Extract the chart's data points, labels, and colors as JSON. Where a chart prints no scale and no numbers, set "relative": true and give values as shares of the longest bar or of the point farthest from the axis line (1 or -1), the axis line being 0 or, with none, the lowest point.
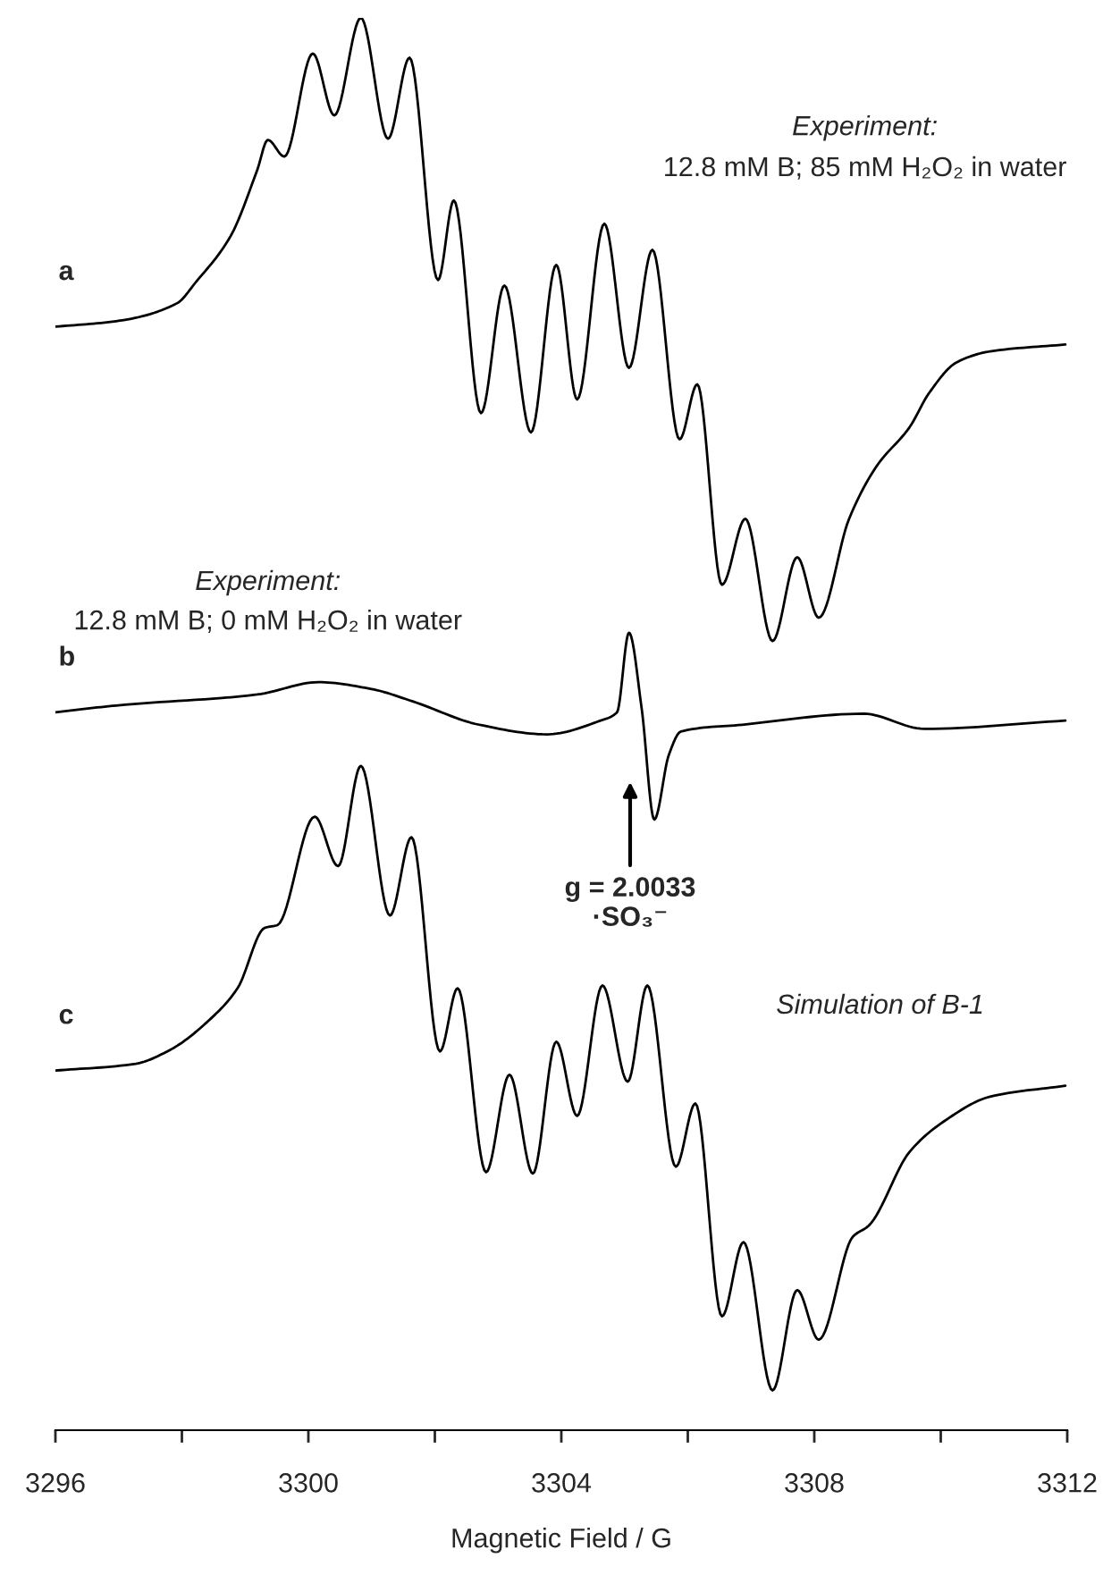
{
  "chart_data": {
    "type": "line",
    "relative": true,
    "xlabel": "Magnetic Field / G",
    "xlim": [
      3296,
      3312
    ],
    "xticks": [
      3296,
      3300,
      3304,
      3308,
      3312
    ],
    "tick_labels": "x",
    "grid": false,
    "legend": false,
    "marker": "none",
    "line_style": "solid",
    "series": [
      {
        "name": "a",
        "color": "#000000",
        "x": [
          3296,
          3296.96,
          3297.92,
          3298.23,
          3298.77,
          3299.19,
          3299.36,
          3299.62,
          3300.07,
          3300.41,
          3300.83,
          3301.26,
          3301.6,
          3302.05,
          3302.3,
          3302.73,
          3303.1,
          3303.52,
          3303.92,
          3304.25,
          3304.68,
          3305.07,
          3305.44,
          3305.87,
          3306.15,
          3306.54,
          3306.91,
          3307.34,
          3307.73,
          3308.07,
          3308.55,
          3308.98,
          3309.51,
          3309.82,
          3310.25,
          3310.78,
          3311.97
        ],
        "values": [
          0.775,
          0.779,
          0.792,
          0.808,
          0.841,
          0.889,
          0.911,
          0.899,
          0.974,
          0.929,
          1.0,
          0.912,
          0.971,
          0.809,
          0.867,
          0.712,
          0.805,
          0.698,
          0.82,
          0.722,
          0.85,
          0.745,
          0.831,
          0.693,
          0.733,
          0.587,
          0.635,
          0.546,
          0.607,
          0.563,
          0.635,
          0.673,
          0.702,
          0.727,
          0.749,
          0.757,
          0.762
        ]
      },
      {
        "name": "b",
        "color": "#000000",
        "x": [
          3296,
          3296.96,
          3299.19,
          3300.16,
          3301.0,
          3301.65,
          3302.7,
          3303.77,
          3304.62,
          3304.88,
          3305.07,
          3305.27,
          3305.47,
          3305.7,
          3305.89,
          3306.86,
          3308.78,
          3309.74,
          3311.97
        ],
        "values": [
          0.494,
          0.499,
          0.507,
          0.516,
          0.511,
          0.502,
          0.485,
          0.478,
          0.488,
          0.494,
          0.552,
          0.497,
          0.416,
          0.463,
          0.48,
          0.485,
          0.493,
          0.482,
          0.488
        ]
      },
      {
        "name": "c",
        "color": "#000000",
        "x": [
          3296,
          3297.27,
          3297.81,
          3298.46,
          3298.88,
          3299.31,
          3299.51,
          3300.1,
          3300.47,
          3300.83,
          3301.29,
          3301.63,
          3302.08,
          3302.36,
          3302.81,
          3303.18,
          3303.55,
          3303.92,
          3304.25,
          3304.65,
          3305.05,
          3305.36,
          3305.81,
          3306.12,
          3306.54,
          3306.88,
          3307.34,
          3307.73,
          3308.07,
          3308.61,
          3308.86,
          3309.51,
          3310.05,
          3310.78,
          3311.97
        ],
        "values": [
          0.233,
          0.238,
          0.248,
          0.271,
          0.293,
          0.337,
          0.339,
          0.418,
          0.382,
          0.455,
          0.346,
          0.403,
          0.247,
          0.293,
          0.159,
          0.23,
          0.158,
          0.254,
          0.2,
          0.295,
          0.225,
          0.295,
          0.163,
          0.209,
          0.054,
          0.108,
          0.0,
          0.073,
          0.037,
          0.112,
          0.12,
          0.174,
          0.196,
          0.214,
          0.222
        ]
      }
    ],
    "annotations": [
      "Experiment:",
      "12.8 mM B; 85 mM H₂O₂ in water",
      "Experiment:",
      "12.8 mM B; 0 mM H₂O₂ in water",
      "g = 2.0033\n·SO₃⁻",
      "Simulation of B-1"
    ]
  }
}
